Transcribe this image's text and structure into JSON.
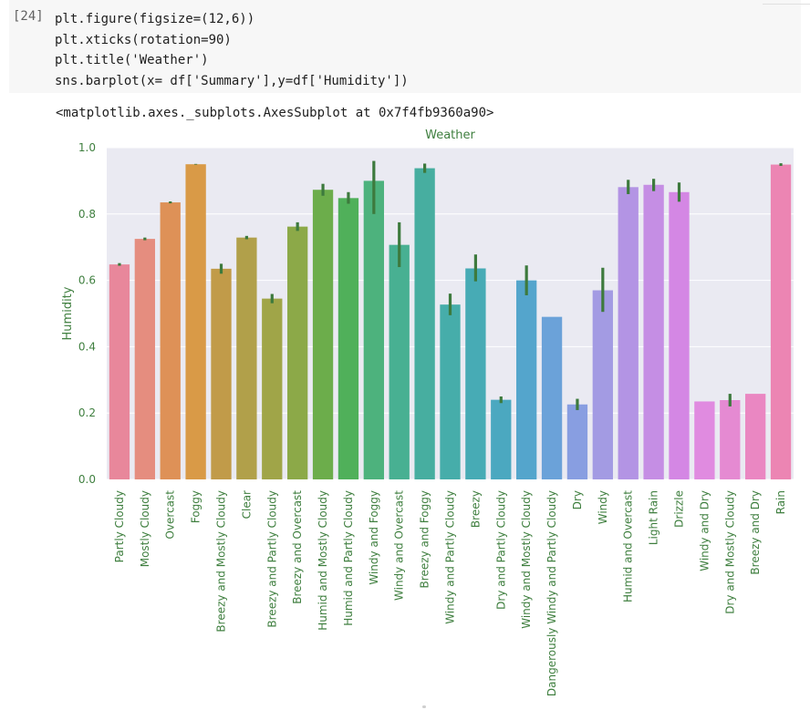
{
  "notebook": {
    "prompt": "[24]",
    "code_lines": [
      "plt.figure(figsize=(12,6))",
      "plt.xticks(rotation=90)",
      "plt.title('Weather')",
      "sns.barplot(x= df['Summary'],y=df['Humidity'])"
    ],
    "output_text": "<matplotlib.axes._subplots.AxesSubplot at 0x7f4fb9360a90>"
  },
  "chart_data": {
    "type": "bar",
    "title": "Weather",
    "xlabel": "",
    "ylabel": "Humidity",
    "ylim": [
      0,
      1.0
    ],
    "yticks": [
      "0.0",
      "0.2",
      "0.4",
      "0.6",
      "0.8",
      "1.0"
    ],
    "grid": true,
    "categories": [
      "Partly Cloudy",
      "Mostly Cloudy",
      "Overcast",
      "Foggy",
      "Breezy and Mostly Cloudy",
      "Clear",
      "Breezy and Partly Cloudy",
      "Breezy and Overcast",
      "Humid and Mostly Cloudy",
      "Humid and Partly Cloudy",
      "Windy and Foggy",
      "Windy and Overcast",
      "Breezy and Foggy",
      "Windy and Partly Cloudy",
      "Breezy",
      "Dry and Partly Cloudy",
      "Windy and Mostly Cloudy",
      "Dangerously Windy and Partly Cloudy",
      "Dry",
      "Windy",
      "Humid and Overcast",
      "Light Rain",
      "Drizzle",
      "Windy and Dry",
      "Dry and Mostly Cloudy",
      "Breezy and Dry",
      "Rain"
    ],
    "values": [
      0.648,
      0.725,
      0.835,
      0.95,
      0.635,
      0.729,
      0.545,
      0.762,
      0.873,
      0.848,
      0.9,
      0.707,
      0.938,
      0.527,
      0.636,
      0.24,
      0.6,
      0.49,
      0.226,
      0.57,
      0.881,
      0.888,
      0.866,
      0.235,
      0.239,
      0.258,
      0.949
    ],
    "error_low": [
      0.644,
      0.721,
      0.832,
      0.949,
      0.62,
      0.724,
      0.531,
      0.749,
      0.855,
      0.831,
      0.8,
      0.64,
      0.924,
      0.495,
      0.597,
      0.23,
      0.555,
      0.49,
      0.209,
      0.505,
      0.86,
      0.869,
      0.837,
      0.235,
      0.22,
      0.258,
      0.945
    ],
    "error_high": [
      0.652,
      0.729,
      0.838,
      0.951,
      0.65,
      0.734,
      0.559,
      0.775,
      0.891,
      0.866,
      0.96,
      0.775,
      0.952,
      0.56,
      0.678,
      0.25,
      0.645,
      0.49,
      0.243,
      0.638,
      0.903,
      0.906,
      0.895,
      0.235,
      0.258,
      0.258,
      0.953
    ],
    "colors": [
      "#e8879b",
      "#e58d7f",
      "#de9157",
      "#d99a47",
      "#c19b49",
      "#b1a04a",
      "#a0a548",
      "#8ca948",
      "#6cad4b",
      "#50b05a",
      "#4db27d",
      "#48b092",
      "#47aea0",
      "#46adaa",
      "#47abb5",
      "#4ba8c0",
      "#54a5cc",
      "#6ba2d9",
      "#889ee1",
      "#a39be3",
      "#b394e4",
      "#c58ee4",
      "#d487e4",
      "#e08be0",
      "#e58ad2",
      "#ea87c2",
      "#ec85b3"
    ],
    "error_color": "#3d7a3d",
    "plot_background": "#eaeaf2",
    "text_color": "#3f7f3f"
  }
}
